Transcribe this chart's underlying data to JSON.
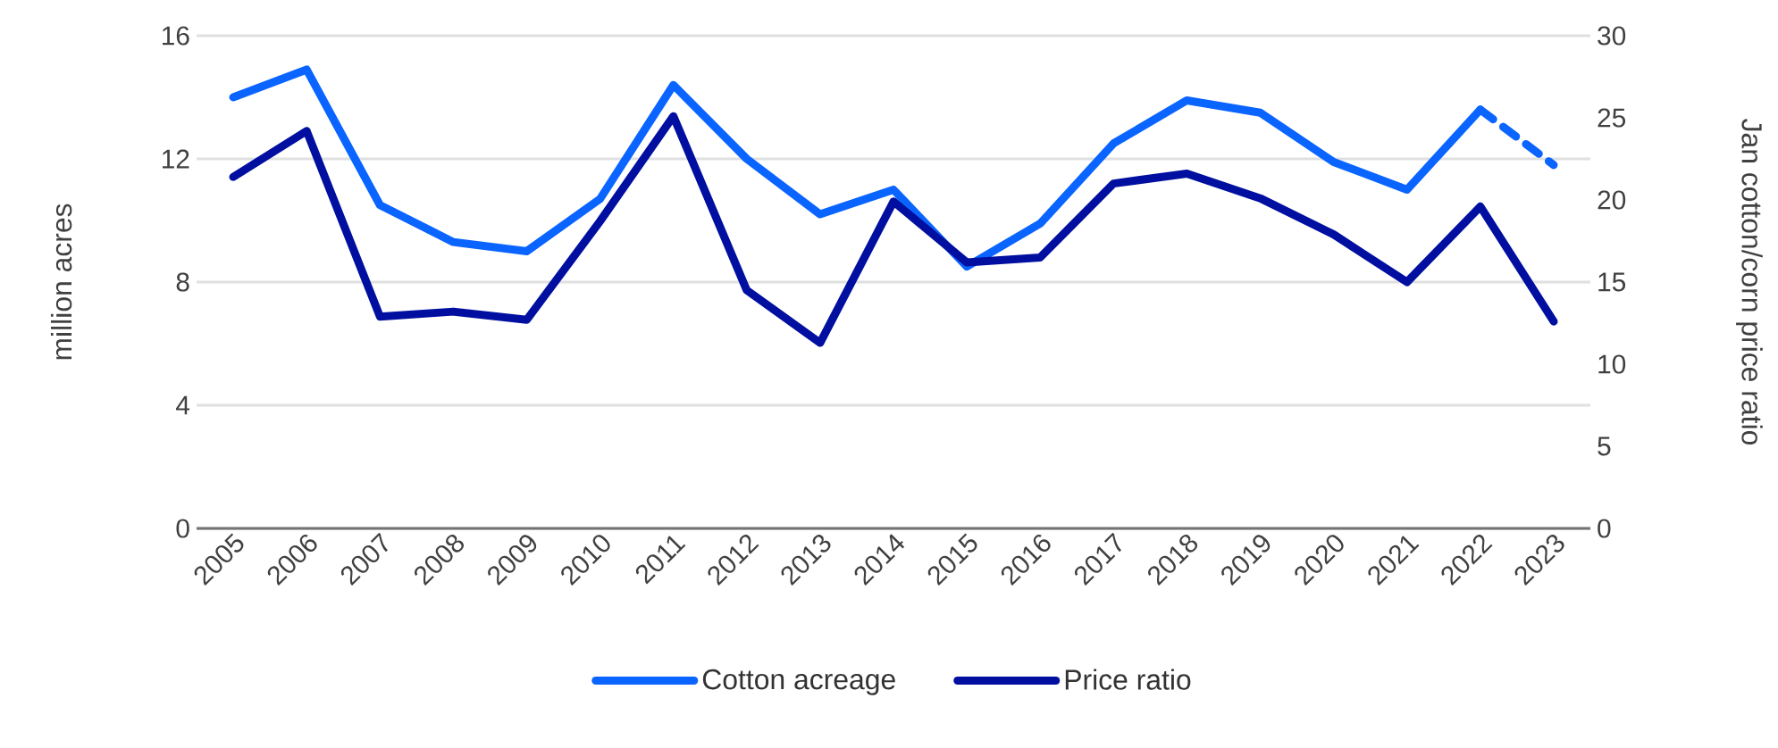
{
  "chart_data": {
    "type": "line",
    "categories": [
      "2005",
      "2006",
      "2007",
      "2008",
      "2009",
      "2010",
      "2011",
      "2012",
      "2013",
      "2014",
      "2015",
      "2016",
      "2017",
      "2018",
      "2019",
      "2020",
      "2021",
      "2022",
      "2023"
    ],
    "ylabel": "million acres",
    "y2label": "Jan  cotton/corn price ratio",
    "ylim": [
      0,
      16
    ],
    "yticks": [
      0,
      4,
      8,
      12,
      16
    ],
    "y2lim": [
      0,
      30
    ],
    "y2ticks": [
      0,
      5,
      10,
      15,
      20,
      25,
      30
    ],
    "grid": "y",
    "legend": "bottom",
    "series": [
      {
        "name": "Cotton acreage",
        "color": "#0a64ff",
        "values": [
          14.0,
          14.9,
          10.5,
          9.3,
          9.0,
          10.7,
          14.4,
          12.0,
          10.2,
          11.0,
          8.5,
          9.9,
          12.5,
          13.9,
          13.5,
          11.9,
          11.0,
          13.6,
          null
        ]
      },
      {
        "color": "#0a64ff",
        "line_style": "dashed",
        "values": [
          null,
          null,
          null,
          null,
          null,
          null,
          null,
          null,
          null,
          null,
          null,
          null,
          null,
          null,
          null,
          null,
          null,
          13.6,
          11.8
        ]
      },
      {
        "name": "Price ratio",
        "color": "#000fa0",
        "axis": "y2",
        "values": [
          21.4,
          24.2,
          12.9,
          13.2,
          12.7,
          18.7,
          25.1,
          14.5,
          11.3,
          19.9,
          16.2,
          16.5,
          21.0,
          21.6,
          20.1,
          17.9,
          15.0,
          19.6,
          12.6
        ]
      }
    ]
  }
}
